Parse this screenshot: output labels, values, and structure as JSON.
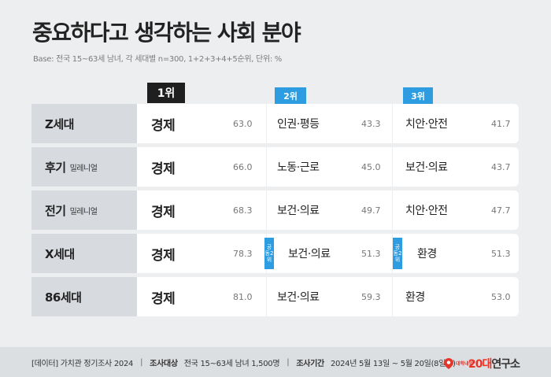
{
  "title": "중요하다고 생각하는 사회 분야",
  "base": "Base: 전국 15~63세 남녀, 각 세대별 n=300, 1+2+3+4+5순위, 단위: %",
  "ranks": {
    "r1": "1위",
    "r2": "2위",
    "r3": "3위"
  },
  "tie_label": "공동2위",
  "rows": [
    {
      "gen": "Z세대",
      "sub": "",
      "r1_name": "경제",
      "r1_value": "63.0",
      "r2_name": "인권·평등",
      "r2_value": "43.3",
      "r3_name": "치안·안전",
      "r3_value": "41.7"
    },
    {
      "gen": "후기",
      "sub": "밀레니얼",
      "r1_name": "경제",
      "r1_value": "66.0",
      "r2_name": "노동·근로",
      "r2_value": "45.0",
      "r3_name": "보건·의료",
      "r3_value": "43.7"
    },
    {
      "gen": "전기",
      "sub": "밀레니얼",
      "r1_name": "경제",
      "r1_value": "68.3",
      "r2_name": "보건·의료",
      "r2_value": "49.7",
      "r3_name": "치안·안전",
      "r3_value": "47.7"
    },
    {
      "gen": "X세대",
      "sub": "",
      "r1_name": "경제",
      "r1_value": "78.3",
      "r2_name": "보건·의료",
      "r2_value": "51.3",
      "r3_name": "환경",
      "r3_value": "51.3"
    },
    {
      "gen": "86세대",
      "sub": "",
      "r1_name": "경제",
      "r1_value": "81.0",
      "r2_name": "보건·의료",
      "r2_value": "59.3",
      "r3_name": "환경",
      "r3_value": "53.0"
    }
  ],
  "footer": {
    "source": "[데이터] 가치관 정기조사 2024",
    "target_label": "조사대상",
    "target_value": "전국 15~63세 남녀 1,500명",
    "period_label": "조사기간",
    "period_value": "2024년 5월 13일 ~ 5월 20일(8일간)"
  },
  "logo": {
    "small": "대학내일",
    "main": "20대",
    "tail": "연구소"
  },
  "colors": {
    "accent": "#2d9ce0",
    "rank1": "#1f1f1f",
    "logo": "#e5352a"
  }
}
